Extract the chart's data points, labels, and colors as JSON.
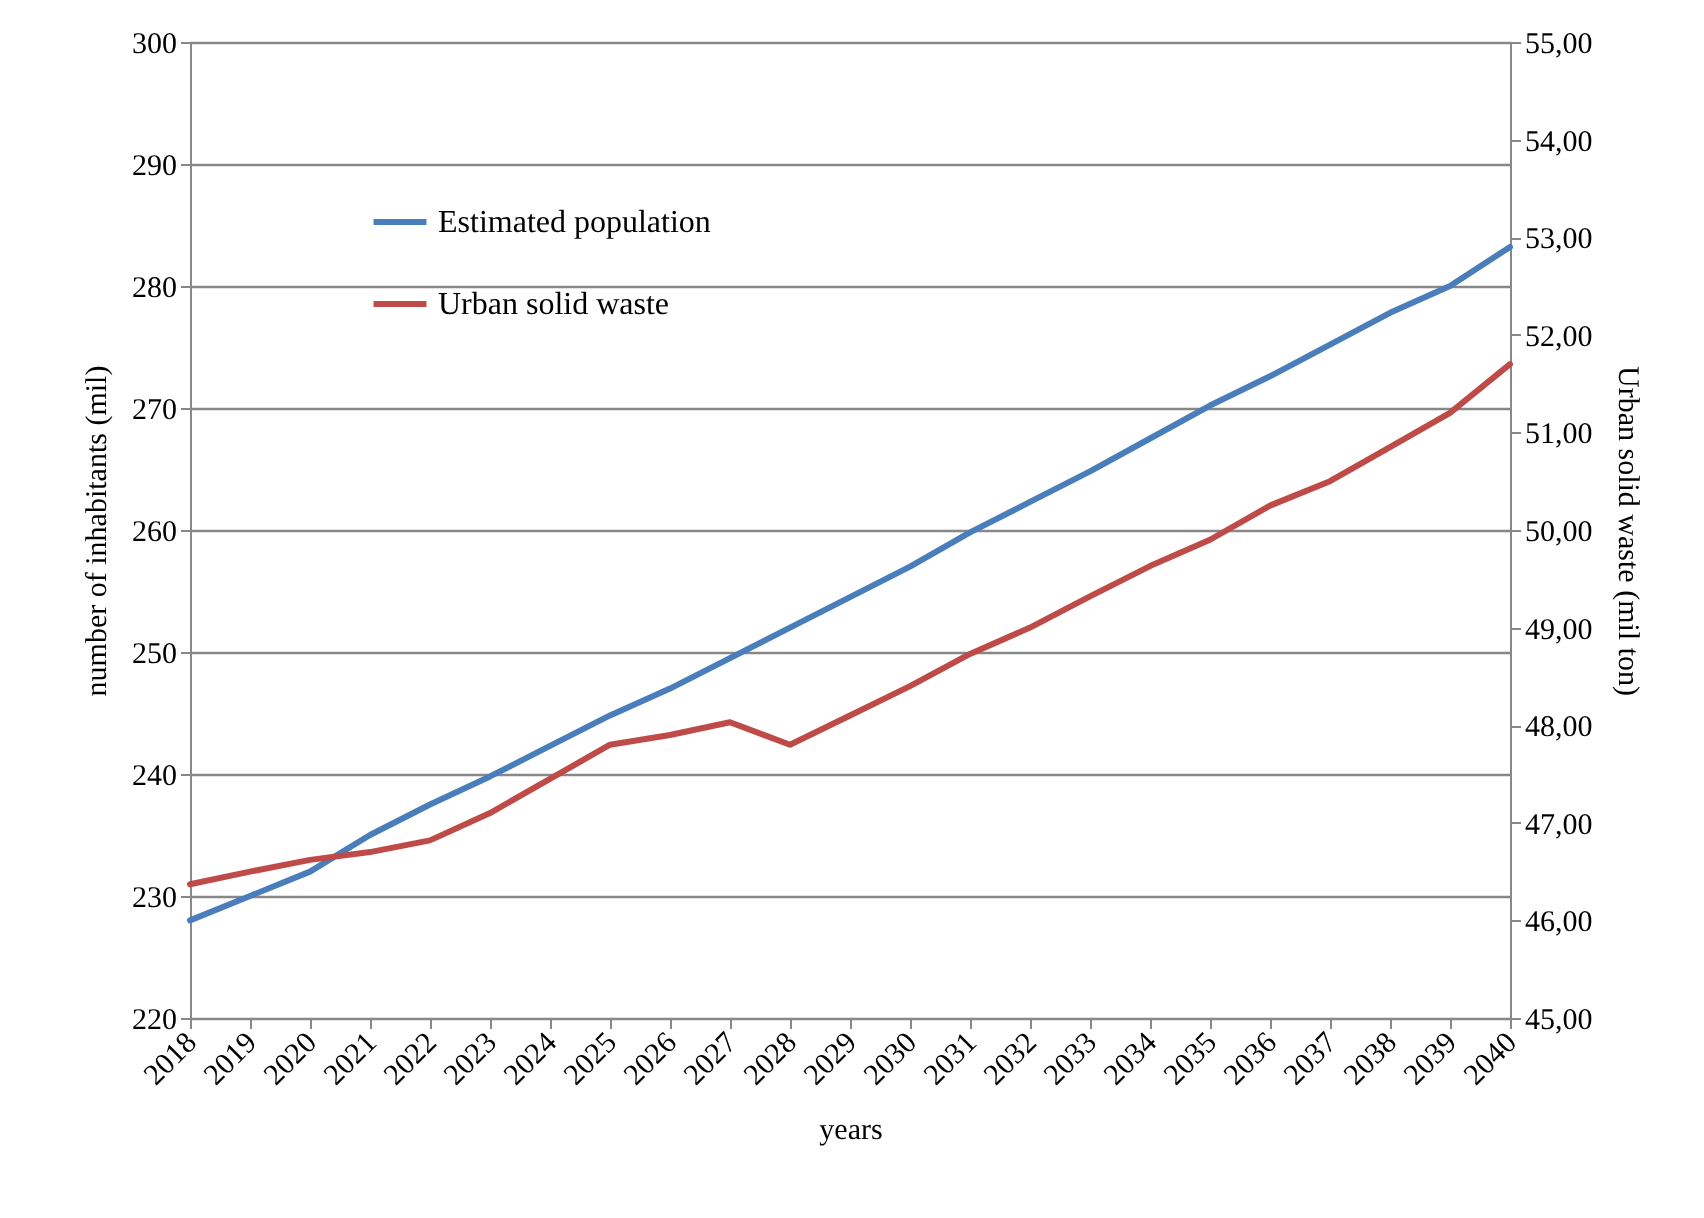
{
  "chart_data": {
    "type": "line",
    "xlabel": "years",
    "ylabel": "number of inhabitants (mil)",
    "y2label": "Urban solid waste (mil ton)",
    "categories": [
      "2018",
      "2019",
      "2020",
      "2021",
      "2022",
      "2023",
      "2024",
      "2025",
      "2026",
      "2027",
      "2028",
      "2029",
      "2030",
      "2031",
      "2032",
      "2033",
      "2034",
      "2035",
      "2036",
      "2037",
      "2038",
      "2039",
      "2040"
    ],
    "series": [
      {
        "name": "Estimated population",
        "color": "#4a7ebb",
        "values": [
          228,
          230,
          232,
          235,
          237.5,
          239.8,
          242.3,
          244.8,
          247,
          249.5,
          252,
          254.5,
          257,
          259.8,
          262.3,
          264.8,
          267.5,
          270.2,
          272.6,
          275.2,
          277.8,
          280,
          283.2
        ]
      },
      {
        "name": "Urban solid waste",
        "color": "#be4b48",
        "axis": "y2",
        "values": [
          46.37,
          46.5,
          46.62,
          46.7,
          46.82,
          47.1,
          47.45,
          47.8,
          47.9,
          48.03,
          47.8,
          48.1,
          48.4,
          48.73,
          49.0,
          49.32,
          49.63,
          49.9,
          50.25,
          50.5,
          50.85,
          51.2,
          51.7
        ]
      }
    ],
    "ylim": [
      220,
      300
    ],
    "yticks": [
      220,
      230,
      240,
      250,
      260,
      270,
      280,
      290,
      300
    ],
    "y2lim": [
      45,
      55
    ],
    "y2ticks": [
      {
        "value": 45,
        "label": "45,00"
      },
      {
        "value": 46,
        "label": "46,00"
      },
      {
        "value": 47,
        "label": "47,00"
      },
      {
        "value": 48,
        "label": "48,00"
      },
      {
        "value": 49,
        "label": "49,00"
      },
      {
        "value": 50,
        "label": "50,00"
      },
      {
        "value": 51,
        "label": "51,00"
      },
      {
        "value": 52,
        "label": "52,00"
      },
      {
        "value": 53,
        "label": "53,00"
      },
      {
        "value": 54,
        "label": "54,00"
      },
      {
        "value": 55,
        "label": "55,00"
      }
    ],
    "grid": "y",
    "legend": "top left"
  }
}
